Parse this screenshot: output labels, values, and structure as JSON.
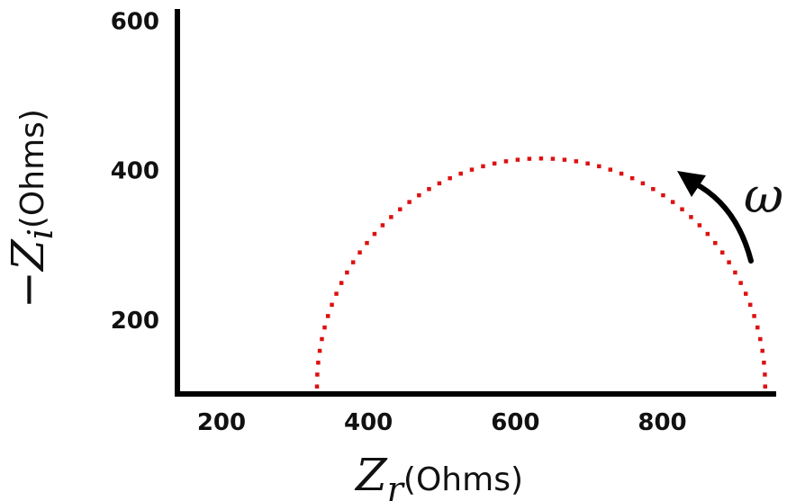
{
  "chart_data": {
    "type": "scatter",
    "title": "",
    "xlabel": {
      "minus": "",
      "symbol": "Z",
      "subscript": "r",
      "unit": "(Ohms)"
    },
    "ylabel": {
      "minus": "−",
      "symbol": "Z",
      "subscript": "i",
      "unit": "(Ohms)"
    },
    "xlim": [
      140,
      955
    ],
    "ylim": [
      100,
      615
    ],
    "xticks": [
      200,
      400,
      600,
      800
    ],
    "yticks": [
      200,
      400,
      600
    ],
    "annotation": {
      "label": "ω",
      "meaning": "arrow indicating increasing frequency direction"
    },
    "semicircle": {
      "x_start": 330,
      "x_end": 940,
      "y_baseline": 110,
      "peak_y": 415,
      "n_points": 60
    },
    "colors": {
      "points": "#dd1111",
      "axes": "#000000"
    }
  }
}
